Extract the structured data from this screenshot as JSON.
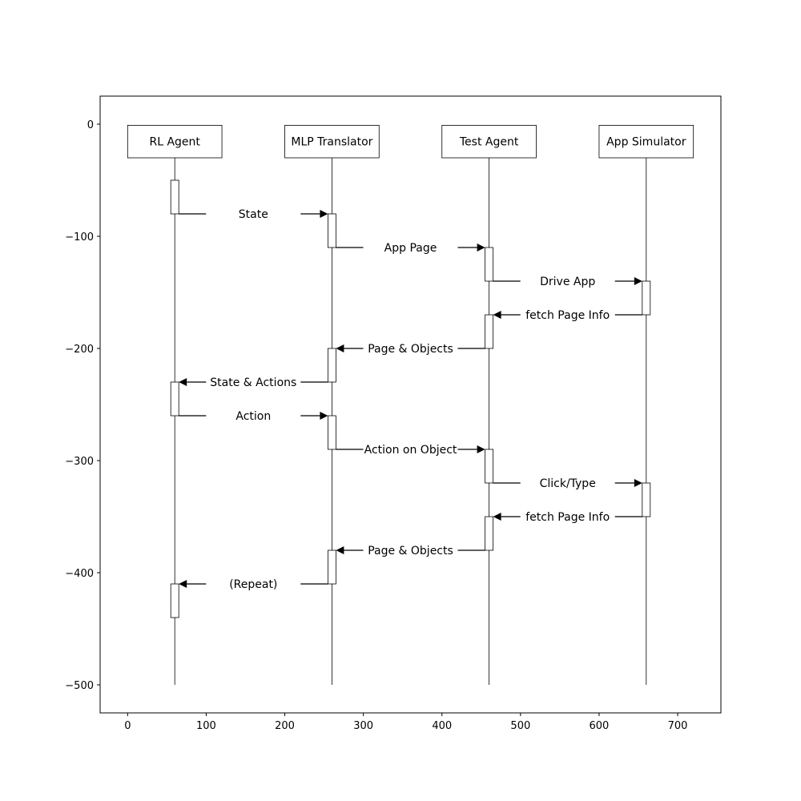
{
  "axes": {
    "x_ticks": [
      0,
      100,
      200,
      300,
      400,
      500,
      600,
      700
    ],
    "y_ticks": [
      0,
      -100,
      -200,
      -300,
      -400,
      -500
    ],
    "xlim": [
      -35,
      755
    ],
    "ylim": [
      -525,
      25
    ],
    "y_tick_labels": [
      "0",
      "−100",
      "−200",
      "−300",
      "−400",
      "−500"
    ],
    "x_tick_labels": [
      "0",
      "100",
      "200",
      "300",
      "400",
      "500",
      "600",
      "700"
    ]
  },
  "actors": [
    {
      "label": "RL Agent",
      "x": 60
    },
    {
      "label": "MLP Translator",
      "x": 260
    },
    {
      "label": "Test Agent",
      "x": 460
    },
    {
      "label": "App Simulator",
      "x": 660
    }
  ],
  "actor_box": {
    "y_top": -1,
    "y_bottom": -30,
    "half_width": 60
  },
  "lifeline_end": -500,
  "activations": [
    {
      "actor": 0,
      "from": -50,
      "to": -80
    },
    {
      "actor": 1,
      "from": -80,
      "to": -110
    },
    {
      "actor": 2,
      "from": -110,
      "to": -140
    },
    {
      "actor": 3,
      "from": -140,
      "to": -170
    },
    {
      "actor": 2,
      "from": -170,
      "to": -200
    },
    {
      "actor": 1,
      "from": -200,
      "to": -230
    },
    {
      "actor": 0,
      "from": -230,
      "to": -260
    },
    {
      "actor": 1,
      "from": -260,
      "to": -290
    },
    {
      "actor": 2,
      "from": -290,
      "to": -320
    },
    {
      "actor": 3,
      "from": -320,
      "to": -350
    },
    {
      "actor": 2,
      "from": -350,
      "to": -380
    },
    {
      "actor": 1,
      "from": -380,
      "to": -410
    },
    {
      "actor": 0,
      "from": -410,
      "to": -440
    }
  ],
  "messages": [
    {
      "label": "State",
      "from": 0,
      "to": 1,
      "y": -80
    },
    {
      "label": "App Page",
      "from": 1,
      "to": 2,
      "y": -110
    },
    {
      "label": "Drive App",
      "from": 2,
      "to": 3,
      "y": -140
    },
    {
      "label": "fetch Page Info",
      "from": 3,
      "to": 2,
      "y": -170
    },
    {
      "label": "Page & Objects",
      "from": 2,
      "to": 1,
      "y": -200
    },
    {
      "label": "State & Actions",
      "from": 1,
      "to": 0,
      "y": -230
    },
    {
      "label": "Action",
      "from": 0,
      "to": 1,
      "y": -260
    },
    {
      "label": "Action on Object",
      "from": 1,
      "to": 2,
      "y": -290
    },
    {
      "label": "Click/Type",
      "from": 2,
      "to": 3,
      "y": -320
    },
    {
      "label": "fetch Page Info",
      "from": 3,
      "to": 2,
      "y": -350
    },
    {
      "label": "Page & Objects",
      "from": 2,
      "to": 1,
      "y": -380
    },
    {
      "label": "(Repeat)",
      "from": 1,
      "to": 0,
      "y": -410
    }
  ]
}
